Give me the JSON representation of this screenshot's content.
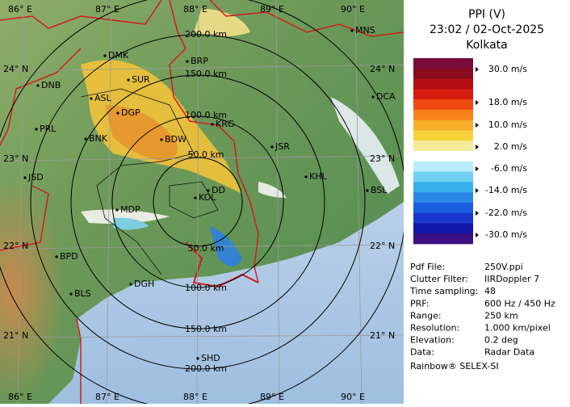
{
  "header": {
    "title": "PPI (V)",
    "timestamp": "23:02 / 02-Oct-2025",
    "station": "Kolkata"
  },
  "legend": {
    "labels": [
      "30.0 m/s",
      "18.0 m/s",
      "10.0 m/s",
      "2.0 m/s",
      "-6.0 m/s",
      "-14.0 m/s",
      "-22.0 m/s",
      "-30.0 m/s"
    ]
  },
  "info": {
    "rows": [
      [
        "Pdf File:",
        "250V.ppi"
      ],
      [
        "Clutter Filter:",
        "IIRDoppler 7"
      ],
      [
        "Time sampling:",
        "48"
      ],
      [
        "PRF:",
        "600 Hz / 450 Hz"
      ],
      [
        "Range:",
        "250 km"
      ],
      [
        "Resolution:",
        "1.000 km/pixel"
      ],
      [
        "Elevation:",
        "0.2 deg"
      ],
      [
        "Data:",
        "Radar Data"
      ]
    ]
  },
  "footer": "Rainbow® SELEX-SI",
  "map": {
    "longitude_labels": [
      "86° E",
      "87° E",
      "88° E",
      "89° E",
      "90° E"
    ],
    "latitude_labels": [
      "24° N",
      "23° N",
      "22° N",
      "21° N"
    ],
    "range_rings": [
      "50.0 km",
      "100.0 km",
      "150.0 km",
      "200.0 km"
    ],
    "cities": [
      "MNS",
      "DMK",
      "BRP",
      "SUR",
      "DNB",
      "ASL",
      "DGP",
      "DCA",
      "PRL",
      "BNK",
      "BDW",
      "KRG",
      "JSR",
      "JSD",
      "KHL",
      "BSL",
      "MDP",
      "KOL",
      "DD",
      "BPD",
      "DGH",
      "BLS",
      "SHD"
    ]
  }
}
